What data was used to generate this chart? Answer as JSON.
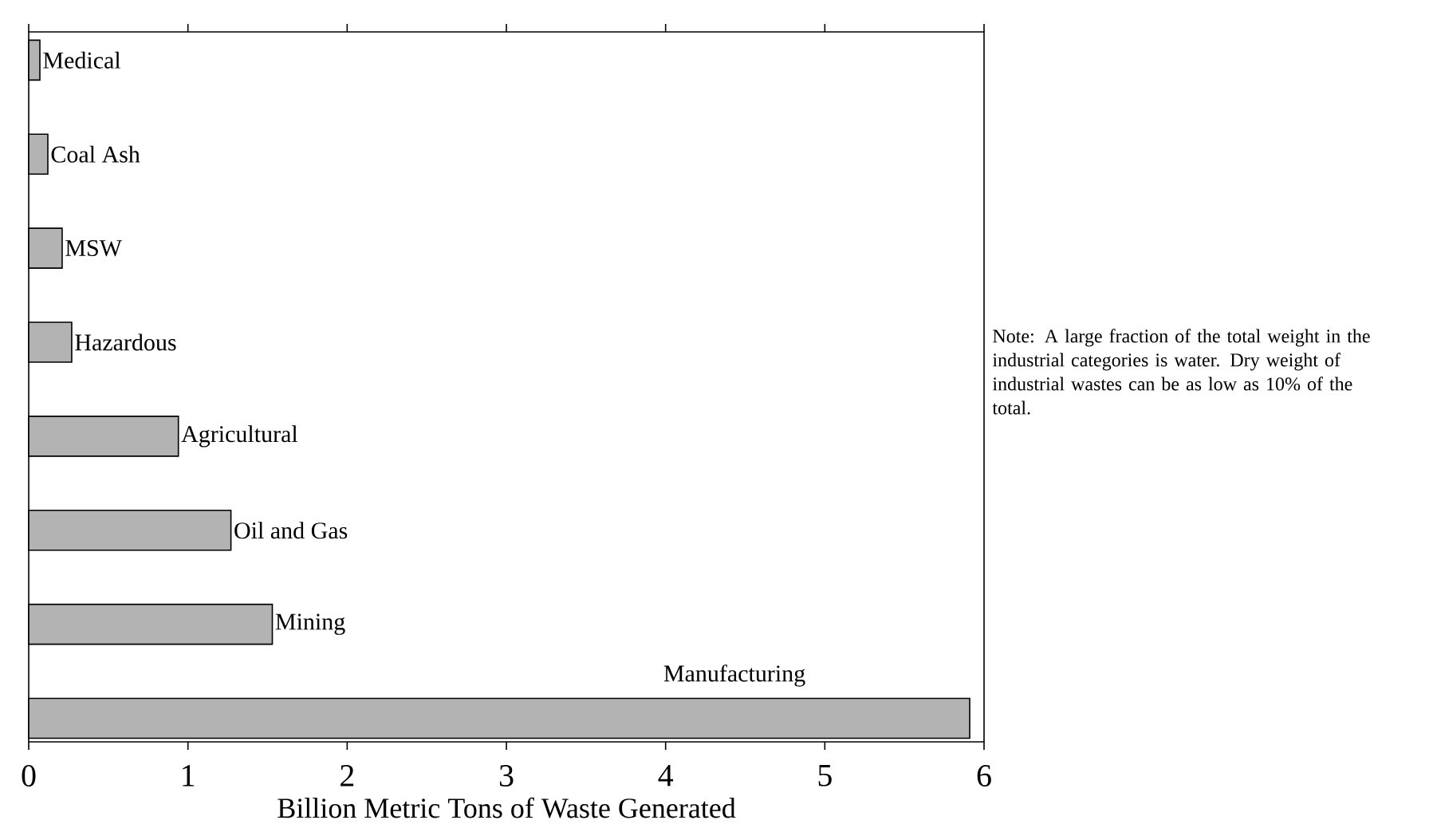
{
  "chart_data": {
    "type": "bar",
    "orientation": "horizontal",
    "categories": [
      "Medical",
      "Coal Ash",
      "MSW",
      "Hazardous",
      "Agricultural",
      "Oil and Gas",
      "Mining",
      "Manufacturing"
    ],
    "values": [
      0.07,
      0.12,
      0.21,
      0.27,
      0.94,
      1.27,
      1.53,
      5.91
    ],
    "color": "#b3b3b3",
    "xlim": [
      0,
      6
    ],
    "xticks": [
      0,
      1,
      2,
      3,
      4,
      5,
      6
    ],
    "xlabel": "Billion Metric Tons of Waste Generated",
    "tick_labels": "x",
    "annotations": [
      "Note: A large fraction of the total weight in the industrial categories is water.  Dry weight of industrial wastes can be as low as 10% of the total."
    ]
  }
}
